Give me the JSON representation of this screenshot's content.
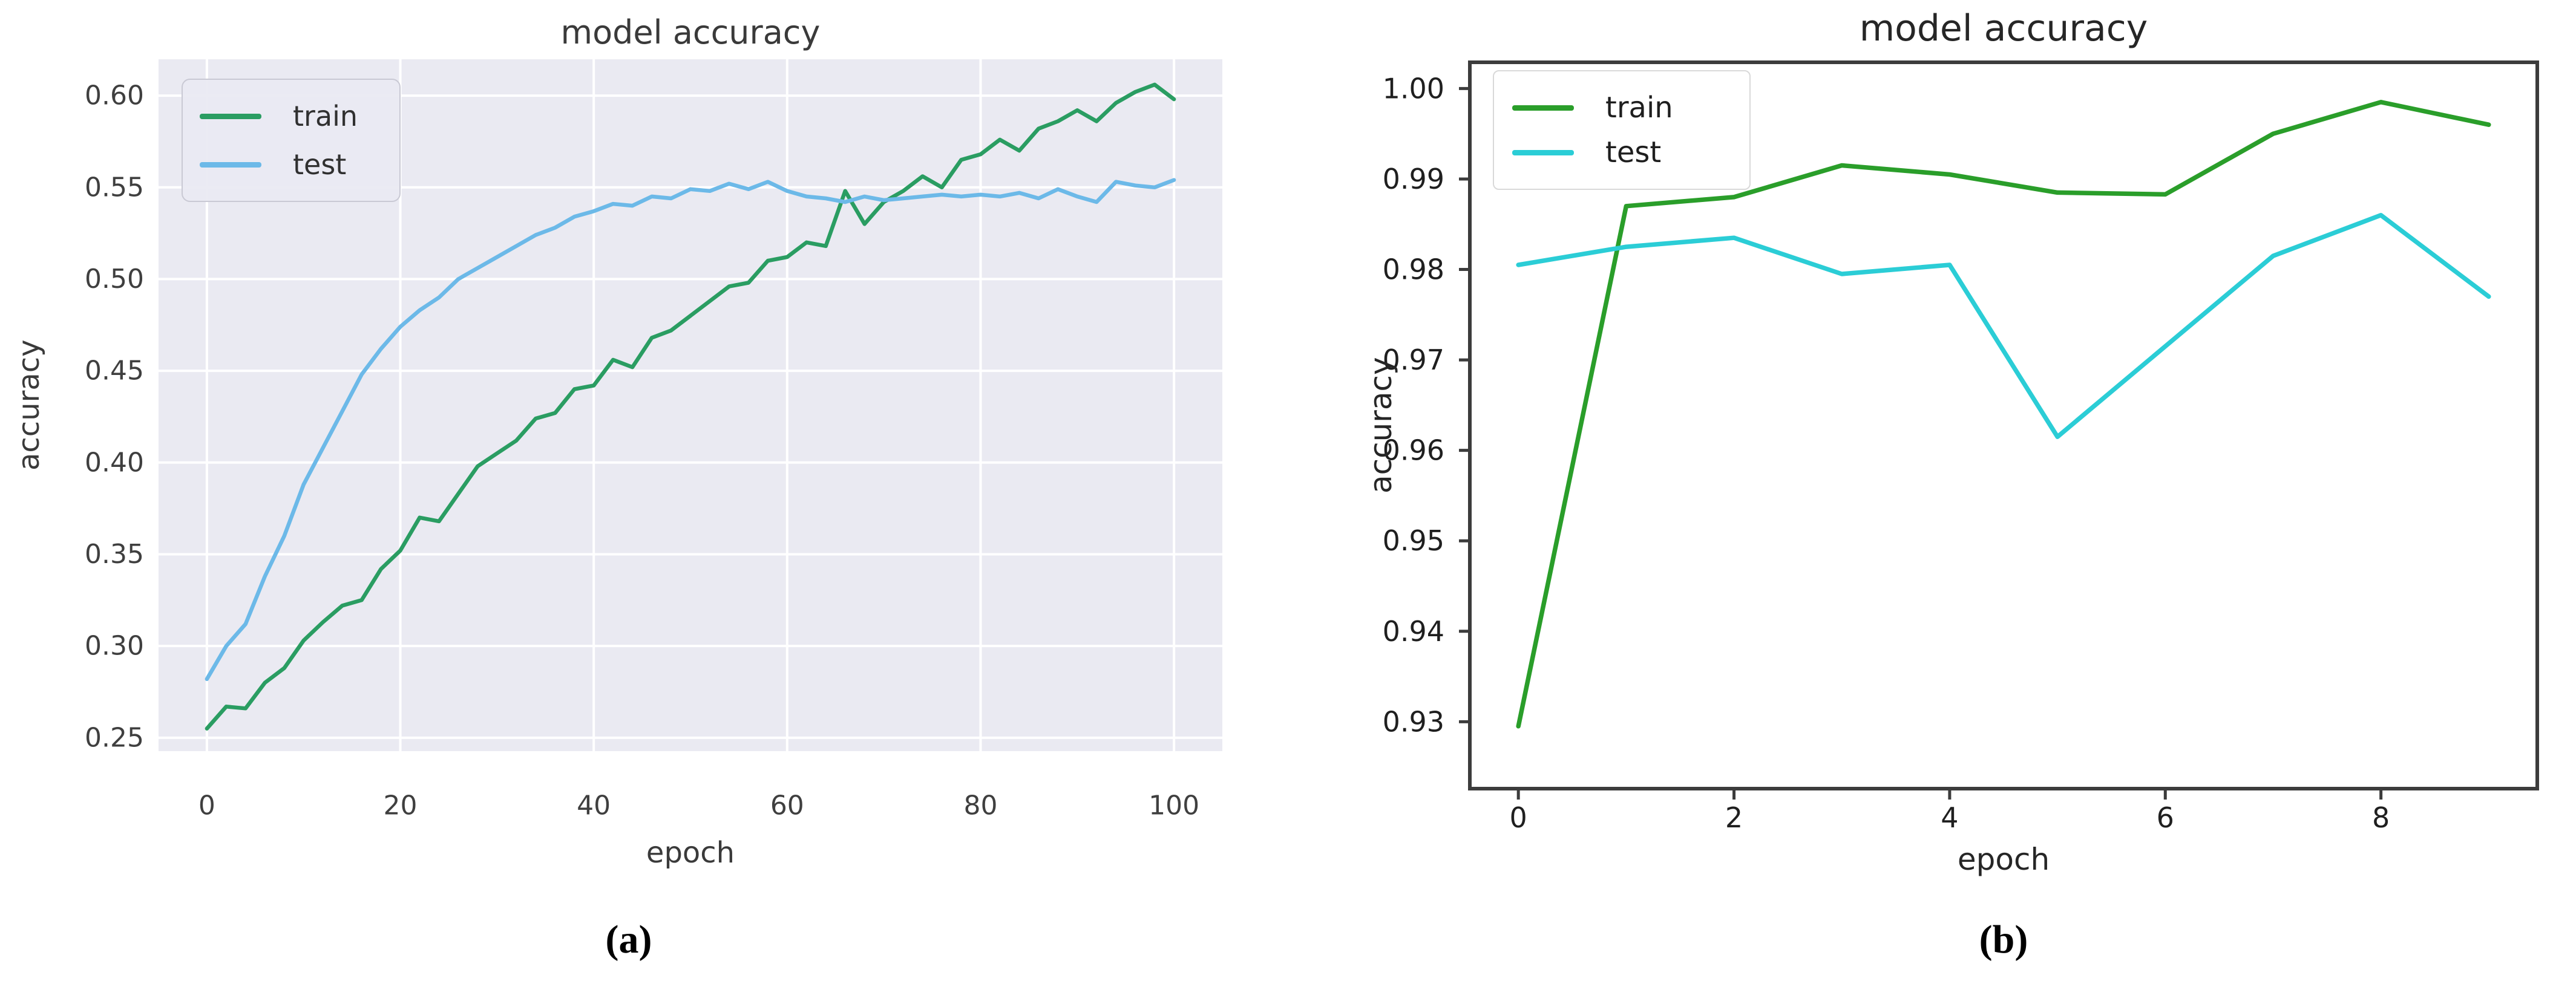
{
  "figures": [
    {
      "caption": "(a)"
    },
    {
      "caption": "(b)"
    }
  ],
  "chart_data": [
    {
      "type": "line",
      "title": "model accuracy",
      "xlabel": "epoch",
      "ylabel": "accuracy",
      "style": "seaborn-darkgrid",
      "background_color": "#eaeaf2",
      "grid": true,
      "grid_color": "#ffffff",
      "legend_position": "upper left",
      "xlim": [
        -5,
        105
      ],
      "ylim": [
        0.2427,
        0.6198
      ],
      "xticks": [
        0,
        20,
        40,
        60,
        80,
        100
      ],
      "xtick_labels": [
        "0",
        "20",
        "40",
        "60",
        "80",
        "100"
      ],
      "yticks": [
        0.25,
        0.3,
        0.35,
        0.4,
        0.45,
        0.5,
        0.55,
        0.6
      ],
      "ytick_labels": [
        "0.25",
        "0.30",
        "0.35",
        "0.40",
        "0.45",
        "0.50",
        "0.55",
        "0.60"
      ],
      "series": [
        {
          "name": "train",
          "color": "#2a9d62",
          "x": [
            0,
            2,
            4,
            6,
            8,
            10,
            12,
            14,
            16,
            18,
            20,
            22,
            24,
            26,
            28,
            30,
            32,
            34,
            36,
            38,
            40,
            42,
            44,
            46,
            48,
            50,
            52,
            54,
            56,
            58,
            60,
            62,
            64,
            66,
            68,
            70,
            72,
            74,
            76,
            78,
            80,
            82,
            84,
            86,
            88,
            90,
            92,
            94,
            96,
            98,
            100
          ],
          "y": [
            0.255,
            0.267,
            0.266,
            0.28,
            0.288,
            0.303,
            0.313,
            0.322,
            0.325,
            0.342,
            0.352,
            0.37,
            0.368,
            0.383,
            0.398,
            0.405,
            0.412,
            0.424,
            0.427,
            0.44,
            0.442,
            0.456,
            0.452,
            0.468,
            0.472,
            0.48,
            0.488,
            0.496,
            0.498,
            0.51,
            0.512,
            0.52,
            0.518,
            0.548,
            0.53,
            0.542,
            0.548,
            0.556,
            0.55,
            0.565,
            0.568,
            0.576,
            0.57,
            0.582,
            0.586,
            0.592,
            0.586,
            0.596,
            0.602,
            0.606,
            0.598
          ]
        },
        {
          "name": "test",
          "color": "#6cb9e8",
          "x": [
            0,
            2,
            4,
            6,
            8,
            10,
            12,
            14,
            16,
            18,
            20,
            22,
            24,
            26,
            28,
            30,
            32,
            34,
            36,
            38,
            40,
            42,
            44,
            46,
            48,
            50,
            52,
            54,
            56,
            58,
            60,
            62,
            64,
            66,
            68,
            70,
            72,
            74,
            76,
            78,
            80,
            82,
            84,
            86,
            88,
            90,
            92,
            94,
            96,
            98,
            100
          ],
          "y": [
            0.282,
            0.3,
            0.312,
            0.338,
            0.36,
            0.388,
            0.408,
            0.428,
            0.448,
            0.462,
            0.474,
            0.483,
            0.49,
            0.5,
            0.506,
            0.512,
            0.518,
            0.524,
            0.528,
            0.534,
            0.537,
            0.541,
            0.54,
            0.545,
            0.544,
            0.549,
            0.548,
            0.552,
            0.549,
            0.553,
            0.548,
            0.545,
            0.544,
            0.542,
            0.545,
            0.543,
            0.544,
            0.545,
            0.546,
            0.545,
            0.546,
            0.545,
            0.547,
            0.544,
            0.549,
            0.545,
            0.542,
            0.553,
            0.551,
            0.55,
            0.554
          ]
        }
      ]
    },
    {
      "type": "line",
      "title": "model accuracy",
      "xlabel": "epoch",
      "ylabel": "accuracy",
      "style": "default-white",
      "background_color": "#ffffff",
      "grid": false,
      "spine_color": "#3c3c3c",
      "legend_position": "upper left",
      "xlim": [
        -0.45,
        9.45
      ],
      "ylim": [
        0.9226,
        1.0029
      ],
      "xticks": [
        0,
        2,
        4,
        6,
        8
      ],
      "xtick_labels": [
        "0",
        "2",
        "4",
        "6",
        "8"
      ],
      "yticks": [
        0.93,
        0.94,
        0.95,
        0.96,
        0.97,
        0.98,
        0.99,
        1.0
      ],
      "ytick_labels": [
        "0.93",
        "0.94",
        "0.95",
        "0.96",
        "0.97",
        "0.98",
        "0.99",
        "1.00"
      ],
      "series": [
        {
          "name": "train",
          "color": "#2a9e2a",
          "x": [
            0,
            1,
            2,
            3,
            4,
            5,
            6,
            7,
            8,
            9
          ],
          "y": [
            0.9295,
            0.987,
            0.988,
            0.9915,
            0.9905,
            0.9885,
            0.9883,
            0.995,
            0.9985,
            0.996
          ]
        },
        {
          "name": "test",
          "color": "#2bcdd6",
          "x": [
            0,
            1,
            2,
            3,
            4,
            5,
            6,
            7,
            8,
            9
          ],
          "y": [
            0.9805,
            0.9825,
            0.9835,
            0.9795,
            0.9805,
            0.9615,
            0.9715,
            0.9815,
            0.986,
            0.977
          ]
        }
      ]
    }
  ]
}
